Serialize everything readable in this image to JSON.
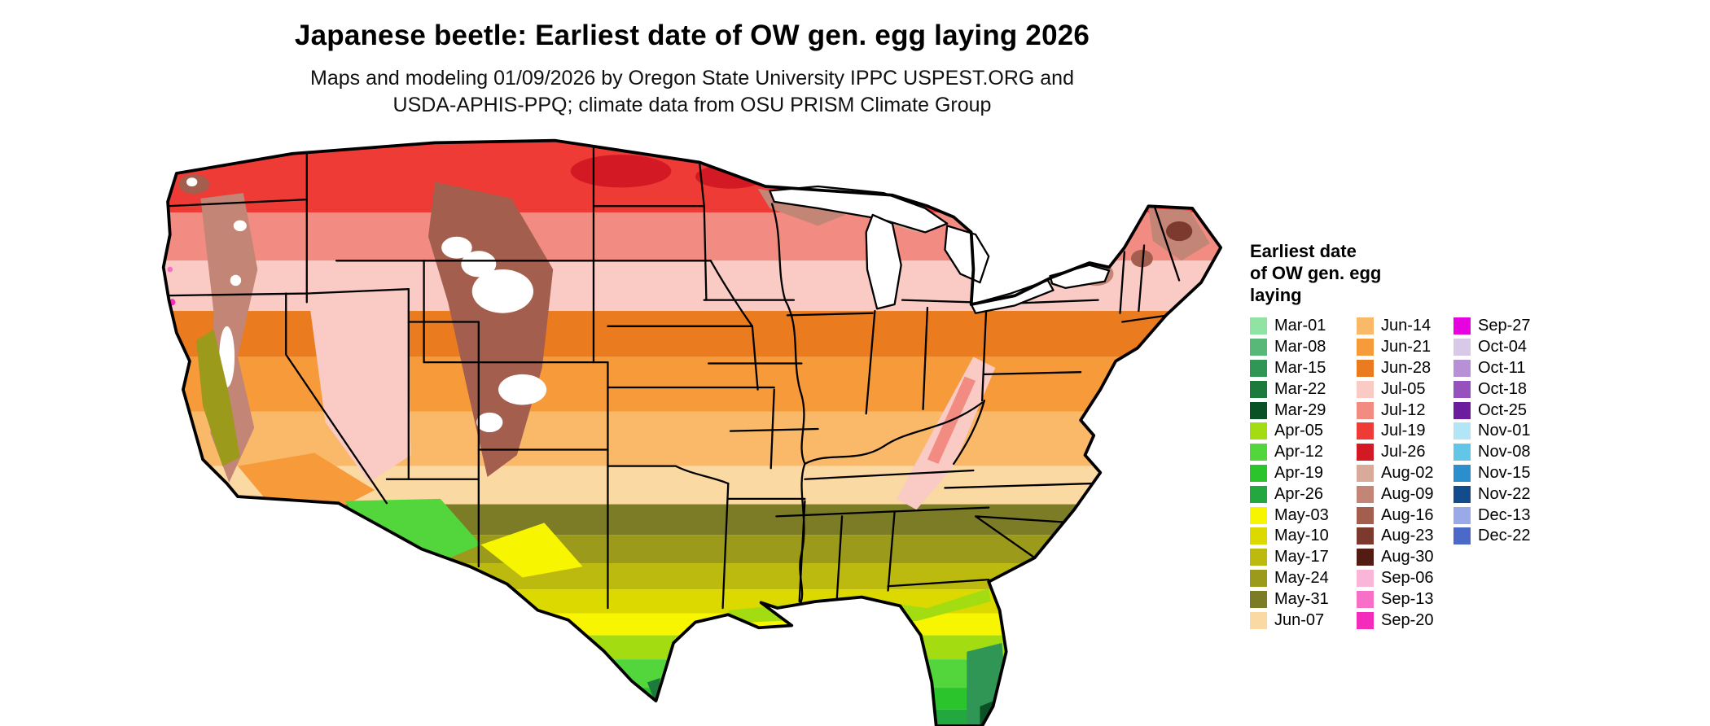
{
  "title": "Japanese beetle: Earliest date of OW gen. egg laying 2026",
  "subtitle": [
    "Maps and modeling 01/09/2026 by Oregon State University IPPC USPEST.ORG and",
    "USDA-APHIS-PPQ; climate data from OSU PRISM Climate Group"
  ],
  "legend": {
    "title_lines": [
      "Earliest date",
      "of OW gen. egg",
      "laying"
    ],
    "columns": [
      [
        "Mar-01",
        "Mar-08",
        "Mar-15",
        "Mar-22",
        "Mar-29",
        "Apr-05",
        "Apr-12",
        "Apr-19",
        "Apr-26",
        "May-03",
        "May-10",
        "May-17",
        "May-24",
        "May-31",
        "Jun-07"
      ],
      [
        "Jun-14",
        "Jun-21",
        "Jun-28",
        "Jul-05",
        "Jul-12",
        "Jul-19",
        "Jul-26",
        "Aug-02",
        "Aug-09",
        "Aug-16",
        "Aug-23",
        "Aug-30",
        "Sep-06",
        "Sep-13",
        "Sep-20"
      ],
      [
        "Sep-27",
        "Oct-04",
        "Oct-11",
        "Oct-18",
        "Oct-25",
        "Nov-01",
        "Nov-08",
        "Nov-15",
        "Nov-22",
        "Dec-13",
        "Dec-22"
      ]
    ],
    "entries": {
      "Mar-01": "#8fe3a3",
      "Mar-08": "#57b877",
      "Mar-15": "#2f9655",
      "Mar-22": "#1b7a3c",
      "Mar-29": "#0a5226",
      "Apr-05": "#a4dc12",
      "Apr-12": "#52d63c",
      "Apr-19": "#2cc42c",
      "Apr-26": "#23a83f",
      "May-03": "#f8f500",
      "May-10": "#dcd900",
      "May-17": "#bcba0e",
      "May-24": "#9b9a1a",
      "May-31": "#7d7c26",
      "Jun-07": "#fad9a2",
      "Jun-14": "#f9b968",
      "Jun-21": "#f79a3a",
      "Jun-28": "#ea7c1f",
      "Jul-05": "#f9cbc4",
      "Jul-12": "#f28b82",
      "Jul-19": "#ee3b36",
      "Jul-26": "#d31a24",
      "Aug-02": "#d9a99a",
      "Aug-09": "#c28576",
      "Aug-16": "#a35e4e",
      "Aug-23": "#7c392d",
      "Aug-30": "#531c12",
      "Sep-06": "#f9b6d8",
      "Sep-13": "#f76fc6",
      "Sep-20": "#f32cbb",
      "Sep-27": "#e703e0",
      "Oct-04": "#d9c9e9",
      "Oct-11": "#b790d6",
      "Oct-18": "#9651bd",
      "Oct-25": "#6b1d9e",
      "Nov-01": "#b2e6f7",
      "Nov-08": "#63c6e6",
      "Nov-15": "#2a8fcc",
      "Nov-22": "#144b8c",
      "Dec-13": "#9aa9e8",
      "Dec-22": "#4b69c9"
    }
  },
  "chart_data": {
    "type": "heatmap",
    "subtype": "choropleth-map",
    "region": "Continental United States",
    "variable": "Earliest date of OW gen. egg laying",
    "year": "2026",
    "classes": [
      "Mar-01",
      "Mar-08",
      "Mar-15",
      "Mar-22",
      "Mar-29",
      "Apr-05",
      "Apr-12",
      "Apr-19",
      "Apr-26",
      "May-03",
      "May-10",
      "May-17",
      "May-24",
      "May-31",
      "Jun-07",
      "Jun-14",
      "Jun-21",
      "Jun-28",
      "Jul-05",
      "Jul-12",
      "Jul-19",
      "Jul-26",
      "Aug-02",
      "Aug-09",
      "Aug-16",
      "Aug-23",
      "Aug-30",
      "Sep-06",
      "Sep-13",
      "Sep-20",
      "Sep-27",
      "Oct-04",
      "Oct-11",
      "Oct-18",
      "Oct-25",
      "Nov-01",
      "Nov-08",
      "Nov-15",
      "Nov-22",
      "Dec-13",
      "Dec-22"
    ],
    "spatial_pattern": "Latest dates (Jul-Aug, reds/browns) across the northern tier and western mountains; mid-season (Jun, oranges) through the central states; earlier dates (May, olives/yellows) across the south; earliest dates (Mar-Apr, greens) along the Gulf Coast, southern Texas and Florida; white areas in high Rockies"
  },
  "map_meta": {
    "border_color": "#000000",
    "water_color": "#ffffff",
    "background": "#ffffff"
  }
}
